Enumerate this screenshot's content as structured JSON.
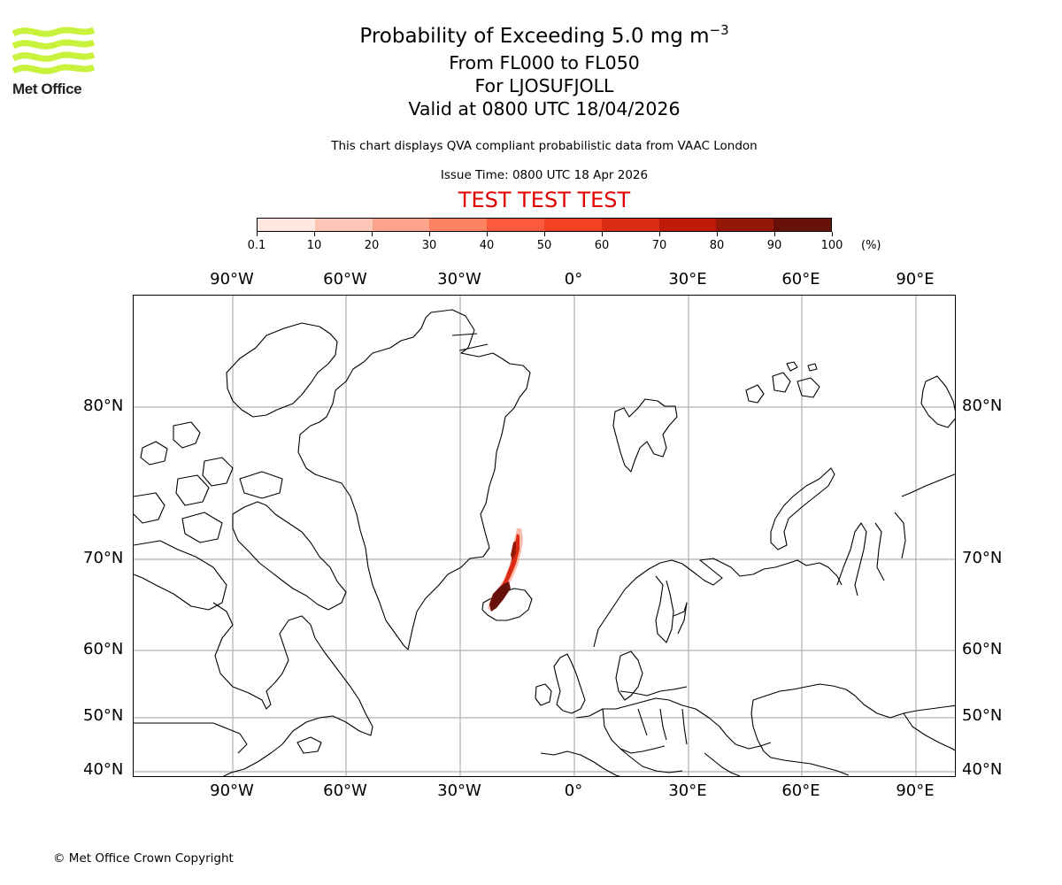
{
  "logo": {
    "org_name": "Met Office",
    "icon": "met-office-waves-logo",
    "color": "#c8f23c"
  },
  "title": {
    "main_prefix": "Probability of Exceeding 5.0 mg m",
    "main_superscript": "−3",
    "line2": "From FL000 to FL050",
    "line3": "For LJOSUFJOLL",
    "line4": "Valid at 0800 UTC 18/04/2026"
  },
  "subtitle": "This chart displays QVA compliant probabilistic data from VAAC London",
  "issue_time": "Issue Time: 0800 UTC 18 Apr 2026",
  "test_banner": "TEST TEST TEST",
  "colorbar": {
    "unit": "(%)",
    "ticks": [
      "0.1",
      "10",
      "20",
      "30",
      "40",
      "50",
      "60",
      "70",
      "80",
      "90",
      "100"
    ],
    "colors": [
      "#fee8e1",
      "#fdc5b6",
      "#fca38b",
      "#fc8262",
      "#fb5a3c",
      "#f34324",
      "#db2b13",
      "#bd1b07",
      "#951705",
      "#67100a"
    ]
  },
  "map": {
    "lon_labels": [
      "90°W",
      "60°W",
      "30°W",
      "0°",
      "30°E",
      "60°E",
      "90°E"
    ],
    "lat_labels": [
      "80°N",
      "70°N",
      "60°N",
      "50°N",
      "40°N"
    ],
    "gridline_color": "#b0b0b0",
    "plume_location": "Iceland (LJOSUFJOLL), extending north-northeast"
  },
  "chart_data": {
    "type": "heatmap",
    "title": "Probability of Exceeding 5.0 mg m^-3",
    "subtitle_lines": [
      "From FL000 to FL050",
      "For LJOSUFJOLL",
      "Valid at 0800 UTC 18/04/2026"
    ],
    "colorbar_label": "(%)",
    "colorbar_bins": [
      0.1,
      10,
      20,
      30,
      40,
      50,
      60,
      70,
      80,
      90,
      100
    ],
    "xlabels": [
      "90°W",
      "60°W",
      "30°W",
      "0°",
      "30°E",
      "60°E",
      "90°E"
    ],
    "ylabels": [
      "40°N",
      "50°N",
      "60°N",
      "70°N",
      "80°N"
    ],
    "grid": true,
    "features": [
      {
        "name": "ash plume",
        "approx_lon_range": [
          -22,
          -15
        ],
        "approx_lat_range": [
          64,
          73
        ],
        "max_probability_pct": 100
      }
    ]
  },
  "footer": {
    "copyright": "© Met Office Crown Copyright"
  }
}
